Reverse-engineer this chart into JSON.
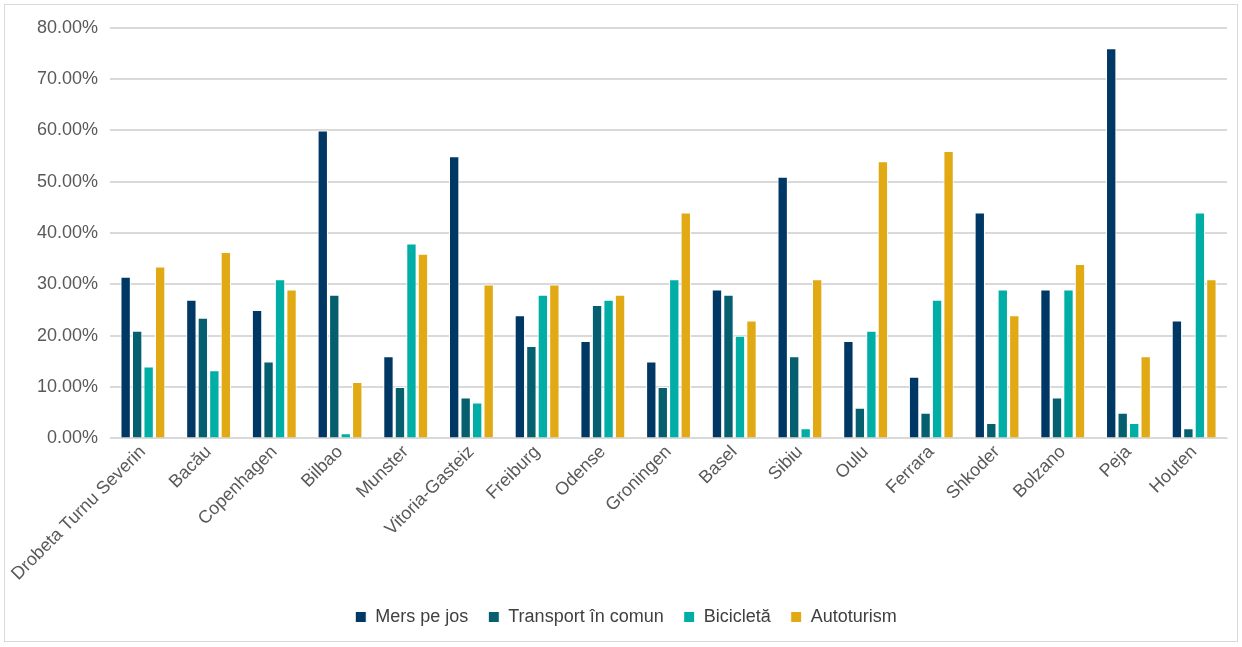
{
  "chart_data": {
    "type": "bar",
    "categories": [
      "Drobeta Turnu Severin",
      "Bacău",
      "Copenhagen",
      "Bilbao",
      "Munster",
      "Vitoria-Gasteiz",
      "Freiburg",
      "Odense",
      "Groningen",
      "Basel",
      "Sibiu",
      "Oulu",
      "Ferrara",
      "Shkoder",
      "Bolzano",
      "Peja",
      "Houten"
    ],
    "series": [
      {
        "name": "Mers pe jos",
        "color": "#003865",
        "values": [
          31.5,
          27,
          25,
          60,
          16,
          55,
          24,
          19,
          15,
          29,
          51,
          19,
          12,
          44,
          29,
          76,
          23
        ]
      },
      {
        "name": "Transport în comun",
        "color": "#055f6e",
        "values": [
          21,
          23.5,
          15,
          28,
          10,
          8,
          18,
          26,
          10,
          28,
          16,
          6,
          5,
          3,
          8,
          5,
          2
        ]
      },
      {
        "name": "Bicicletă",
        "color": "#00aea6",
        "values": [
          14,
          13.3,
          31,
          1,
          38,
          7,
          28,
          27,
          31,
          20,
          2,
          21,
          27,
          29,
          29,
          3,
          44
        ]
      },
      {
        "name": "Autoturism",
        "color": "#e1aa14",
        "values": [
          33.5,
          36.3,
          29,
          11,
          36,
          30,
          30,
          28,
          44,
          23,
          31,
          54,
          56,
          24,
          34,
          16,
          31
        ]
      }
    ],
    "ylim": [
      0,
      80
    ],
    "yticks": [
      {
        "value": 0,
        "label": "0.00%"
      },
      {
        "value": 10,
        "label": "10.00%"
      },
      {
        "value": 20,
        "label": "20.00%"
      },
      {
        "value": 30,
        "label": "30.00%"
      },
      {
        "value": 40,
        "label": "40.00%"
      },
      {
        "value": 50,
        "label": "50.00%"
      },
      {
        "value": 60,
        "label": "60.00%"
      },
      {
        "value": 70,
        "label": "70.00%"
      },
      {
        "value": 80,
        "label": "80.00%"
      }
    ],
    "grid": "y",
    "legend": "bottom"
  }
}
